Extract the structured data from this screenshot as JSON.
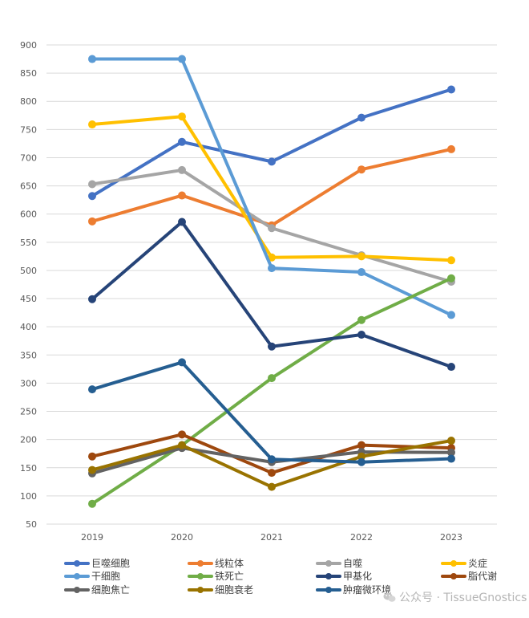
{
  "chart_data": {
    "type": "line",
    "title": "",
    "xlabel": "",
    "ylabel": "",
    "categories": [
      "2019",
      "2020",
      "2021",
      "2022",
      "2023"
    ],
    "ylim": [
      50,
      900
    ],
    "yticks": [
      50,
      100,
      150,
      200,
      250,
      300,
      350,
      400,
      450,
      500,
      550,
      600,
      650,
      700,
      750,
      800,
      850,
      900
    ],
    "grid": true,
    "legend_position": "bottom",
    "series": [
      {
        "name": "巨噬细胞",
        "color": "#4472C4",
        "values": [
          632,
          728,
          693,
          771,
          821
        ]
      },
      {
        "name": "线粒体",
        "color": "#ED7D31",
        "values": [
          587,
          633,
          580,
          679,
          715
        ]
      },
      {
        "name": "自噬",
        "color": "#A5A5A5",
        "values": [
          653,
          678,
          575,
          527,
          480
        ]
      },
      {
        "name": "炎症",
        "color": "#FFC000",
        "values": [
          759,
          773,
          523,
          525,
          518
        ]
      },
      {
        "name": "干细胞",
        "color": "#5B9BD5",
        "values": [
          875,
          875,
          504,
          497,
          421
        ]
      },
      {
        "name": "铁死亡",
        "color": "#70AD47",
        "values": [
          86,
          190,
          309,
          412,
          486
        ]
      },
      {
        "name": "甲基化",
        "color": "#264478",
        "values": [
          449,
          586,
          365,
          386,
          329
        ]
      },
      {
        "name": "脂代谢",
        "color": "#9E480E",
        "values": [
          170,
          209,
          141,
          190,
          185
        ]
      },
      {
        "name": "细胞焦亡",
        "color": "#636363",
        "values": [
          140,
          185,
          160,
          178,
          177
        ]
      },
      {
        "name": "细胞衰老",
        "color": "#997300",
        "values": [
          146,
          190,
          116,
          170,
          198
        ]
      },
      {
        "name": "肿瘤微环境",
        "color": "#255E91",
        "values": [
          289,
          337,
          165,
          160,
          166
        ]
      }
    ]
  },
  "watermark": {
    "text": "公众号 · TissueGnostics"
  }
}
